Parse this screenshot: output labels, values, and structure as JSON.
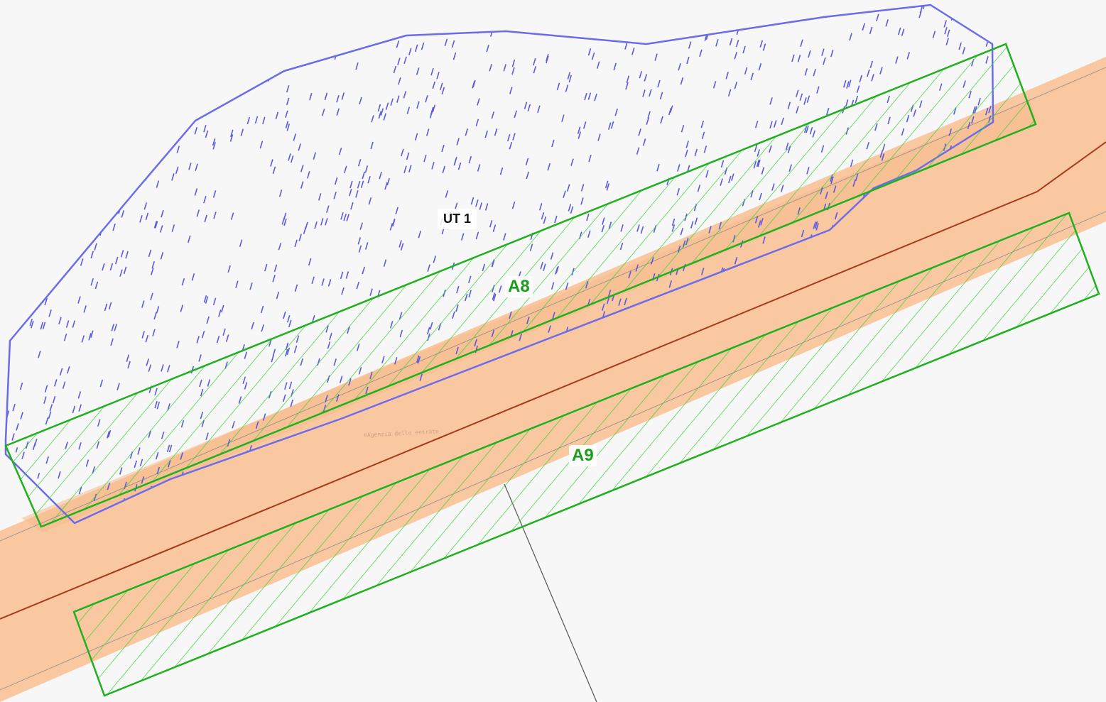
{
  "labels": {
    "ut": "UT 1",
    "area_a8": "A8",
    "area_a9": "A9"
  },
  "watermark": "©Agenzia delle entrate",
  "colors": {
    "background": "#f7f7f7",
    "road_band": "#f9c8a0",
    "road_centerline": "#a83a1a",
    "ut_boundary": "#6c6cea",
    "ut_hatch": "#5a5ae0",
    "area_outline": "#1fb01f",
    "area_hatch": "#35d035",
    "area_label": "#1a9e1a",
    "cadastral_line": "#555555"
  }
}
